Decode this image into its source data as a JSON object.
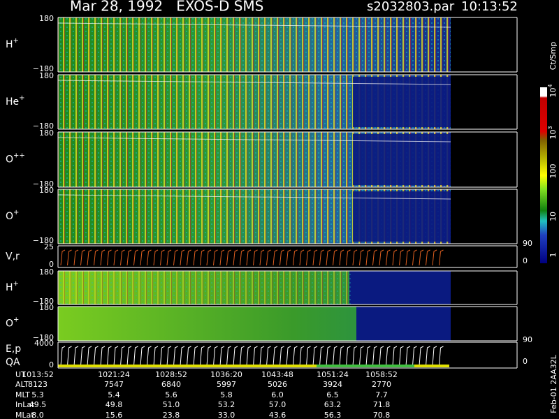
{
  "header": {
    "title": "Mar 28, 1992   EXOS-D SMS",
    "file": "s2032803.par",
    "time": "10:13:52"
  },
  "panels": [
    {
      "label": "H",
      "sup": "+",
      "top": "180",
      "bottom": "−180"
    },
    {
      "label": "He",
      "sup": "+",
      "top": "180",
      "bottom": "−180"
    },
    {
      "label": "O",
      "sup": "++",
      "top": "180",
      "bottom": "−180"
    },
    {
      "label": "O",
      "sup": "+",
      "top": "180",
      "bottom": "−180"
    },
    {
      "label": "V,r",
      "top": "25",
      "bottom": "0",
      "right": [
        "90",
        "0"
      ]
    },
    {
      "label": "H",
      "sup": "+",
      "top": "180",
      "bottom": "−180"
    },
    {
      "label": "O",
      "sup": "+",
      "top": "180",
      "bottom": "−180"
    },
    {
      "label": "E,p",
      "label2": "QA",
      "top": "4000",
      "bottom": "0",
      "right": [
        "90",
        "0"
      ]
    }
  ],
  "colorbar": {
    "unit": "Ct/Smp",
    "labels": [
      {
        "base": "10",
        "exp": "4"
      },
      {
        "base": "10",
        "exp": "3"
      },
      "100",
      "10",
      "1"
    ]
  },
  "footer": {
    "rows": [
      {
        "label": "UT",
        "values": [
          "1013:52",
          "1021:24",
          "1028:52",
          "1036:20",
          "1043:48",
          "1051:24",
          "1058:52"
        ]
      },
      {
        "label": "ALT",
        "values": [
          "8123",
          "7547",
          "6840",
          "5997",
          "5026",
          "3924",
          "2770"
        ]
      },
      {
        "label": "MLT",
        "values": [
          "5.3",
          "5.4",
          "5.6",
          "5.8",
          "6.0",
          "6.5",
          "7.7"
        ]
      },
      {
        "label": "InLat",
        "values": [
          "49.5",
          "49.8",
          "51.0",
          "53.2",
          "57.0",
          "63.2",
          "71.8"
        ]
      },
      {
        "label": "MLat",
        "values": [
          "8.0",
          "15.6",
          "23.8",
          "33.0",
          "43.6",
          "56.3",
          "70.8"
        ]
      }
    ]
  },
  "stamp": "Feb-01 2AA32L"
}
